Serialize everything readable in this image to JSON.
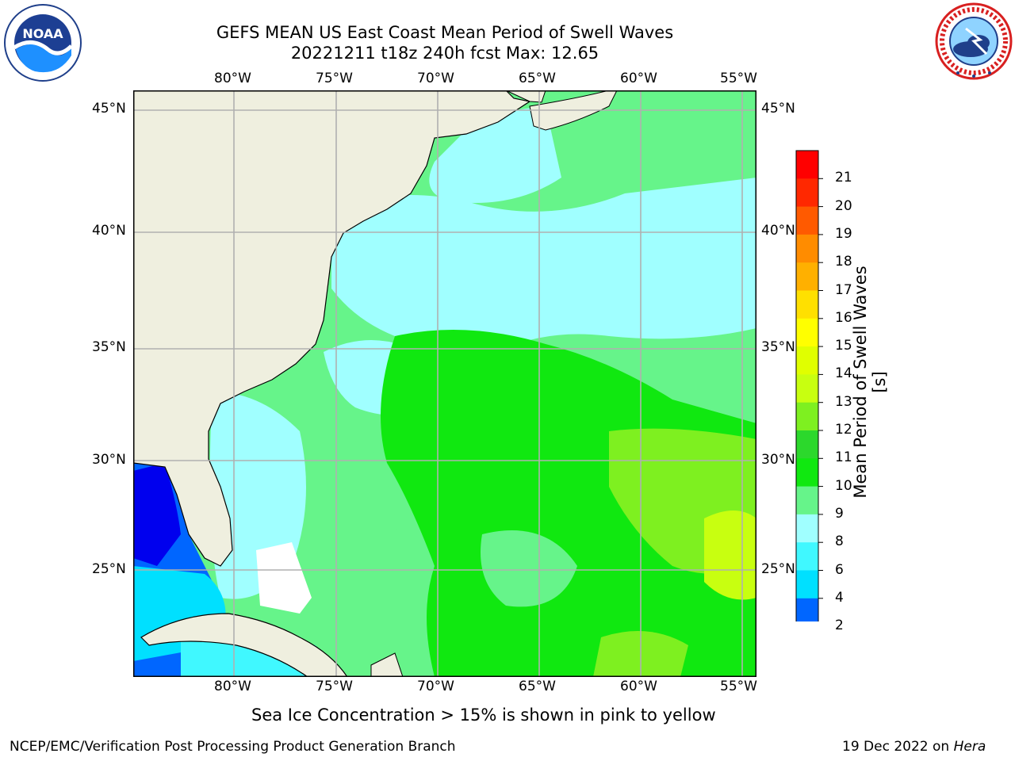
{
  "header": {
    "title_line1": "GEFS MEAN US East Coast Mean Period of Swell Waves",
    "title_line2": "20221211 t18z 240h fcst   Max: 12.65"
  },
  "logos": {
    "left": {
      "name": "noaa-logo",
      "text": "NOAA"
    },
    "right": {
      "name": "nws-logo",
      "text": "NATIONAL WEATHER SERVICE"
    }
  },
  "map": {
    "lon_labels": [
      "80°W",
      "75°W",
      "70°W",
      "65°W",
      "60°W",
      "55°W"
    ],
    "lat_labels": [
      "45°N",
      "40°N",
      "35°N",
      "30°N",
      "25°N"
    ],
    "land_color": "#efefdf",
    "grid_color": "#b0b0b0"
  },
  "colorbar": {
    "label": "Mean Period of Swell Waves [s]",
    "ticks": [
      "2",
      "4",
      "6",
      "8",
      "9",
      "10",
      "11",
      "12",
      "13",
      "14",
      "15",
      "16",
      "17",
      "18",
      "19",
      "20",
      "21"
    ],
    "colors": [
      "#0066ff",
      "#00e0ff",
      "#40f8ff",
      "#a0ffff",
      "#66f48a",
      "#10e810",
      "#2cd82c",
      "#7ef020",
      "#c8ff10",
      "#e0ff00",
      "#ffff00",
      "#ffe000",
      "#ffb000",
      "#ff8c00",
      "#ff5a00",
      "#ff2800",
      "#ff0000"
    ],
    "extend_color": "#0000ee"
  },
  "footer": {
    "sea_ice_note": "Sea Ice Concentration > 15% is shown in pink to yellow",
    "credit": "NCEP/EMC/Verification Post Processing Product Generation Branch",
    "date": "19 Dec 2022 on",
    "host": "Hera"
  }
}
